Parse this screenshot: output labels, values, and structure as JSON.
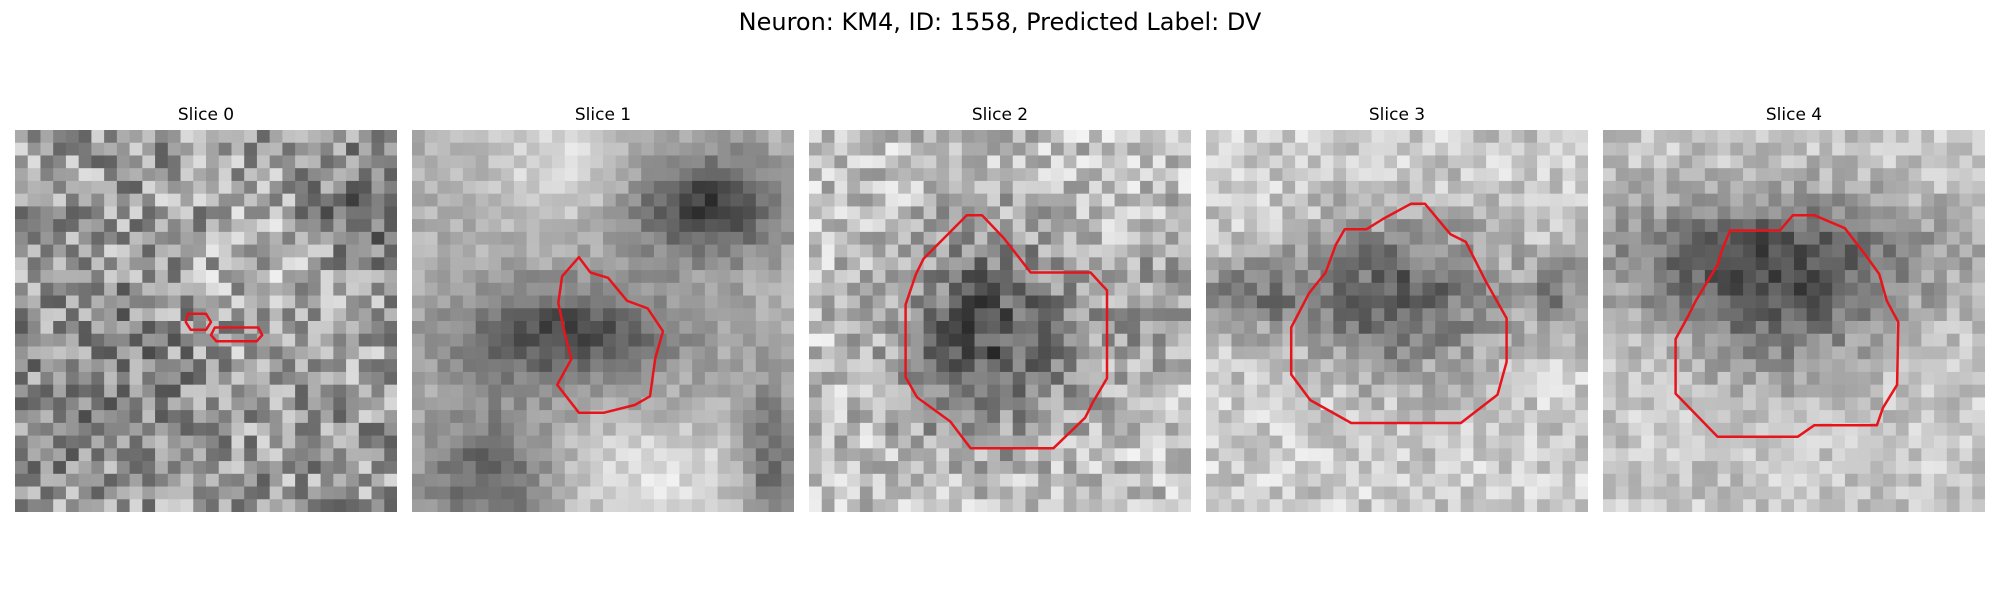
{
  "figure": {
    "title": "Neuron: KM4, ID: 1558, Predicted Label: DV"
  },
  "panels": [
    {
      "title": "Slice 0"
    },
    {
      "title": "Slice 1"
    },
    {
      "title": "Slice 2"
    },
    {
      "title": "Slice 3"
    },
    {
      "title": "Slice 4"
    }
  ],
  "colors": {
    "background": "#ffffff",
    "contour": "#e8141c",
    "colormap": "gray (dark to light)"
  }
}
